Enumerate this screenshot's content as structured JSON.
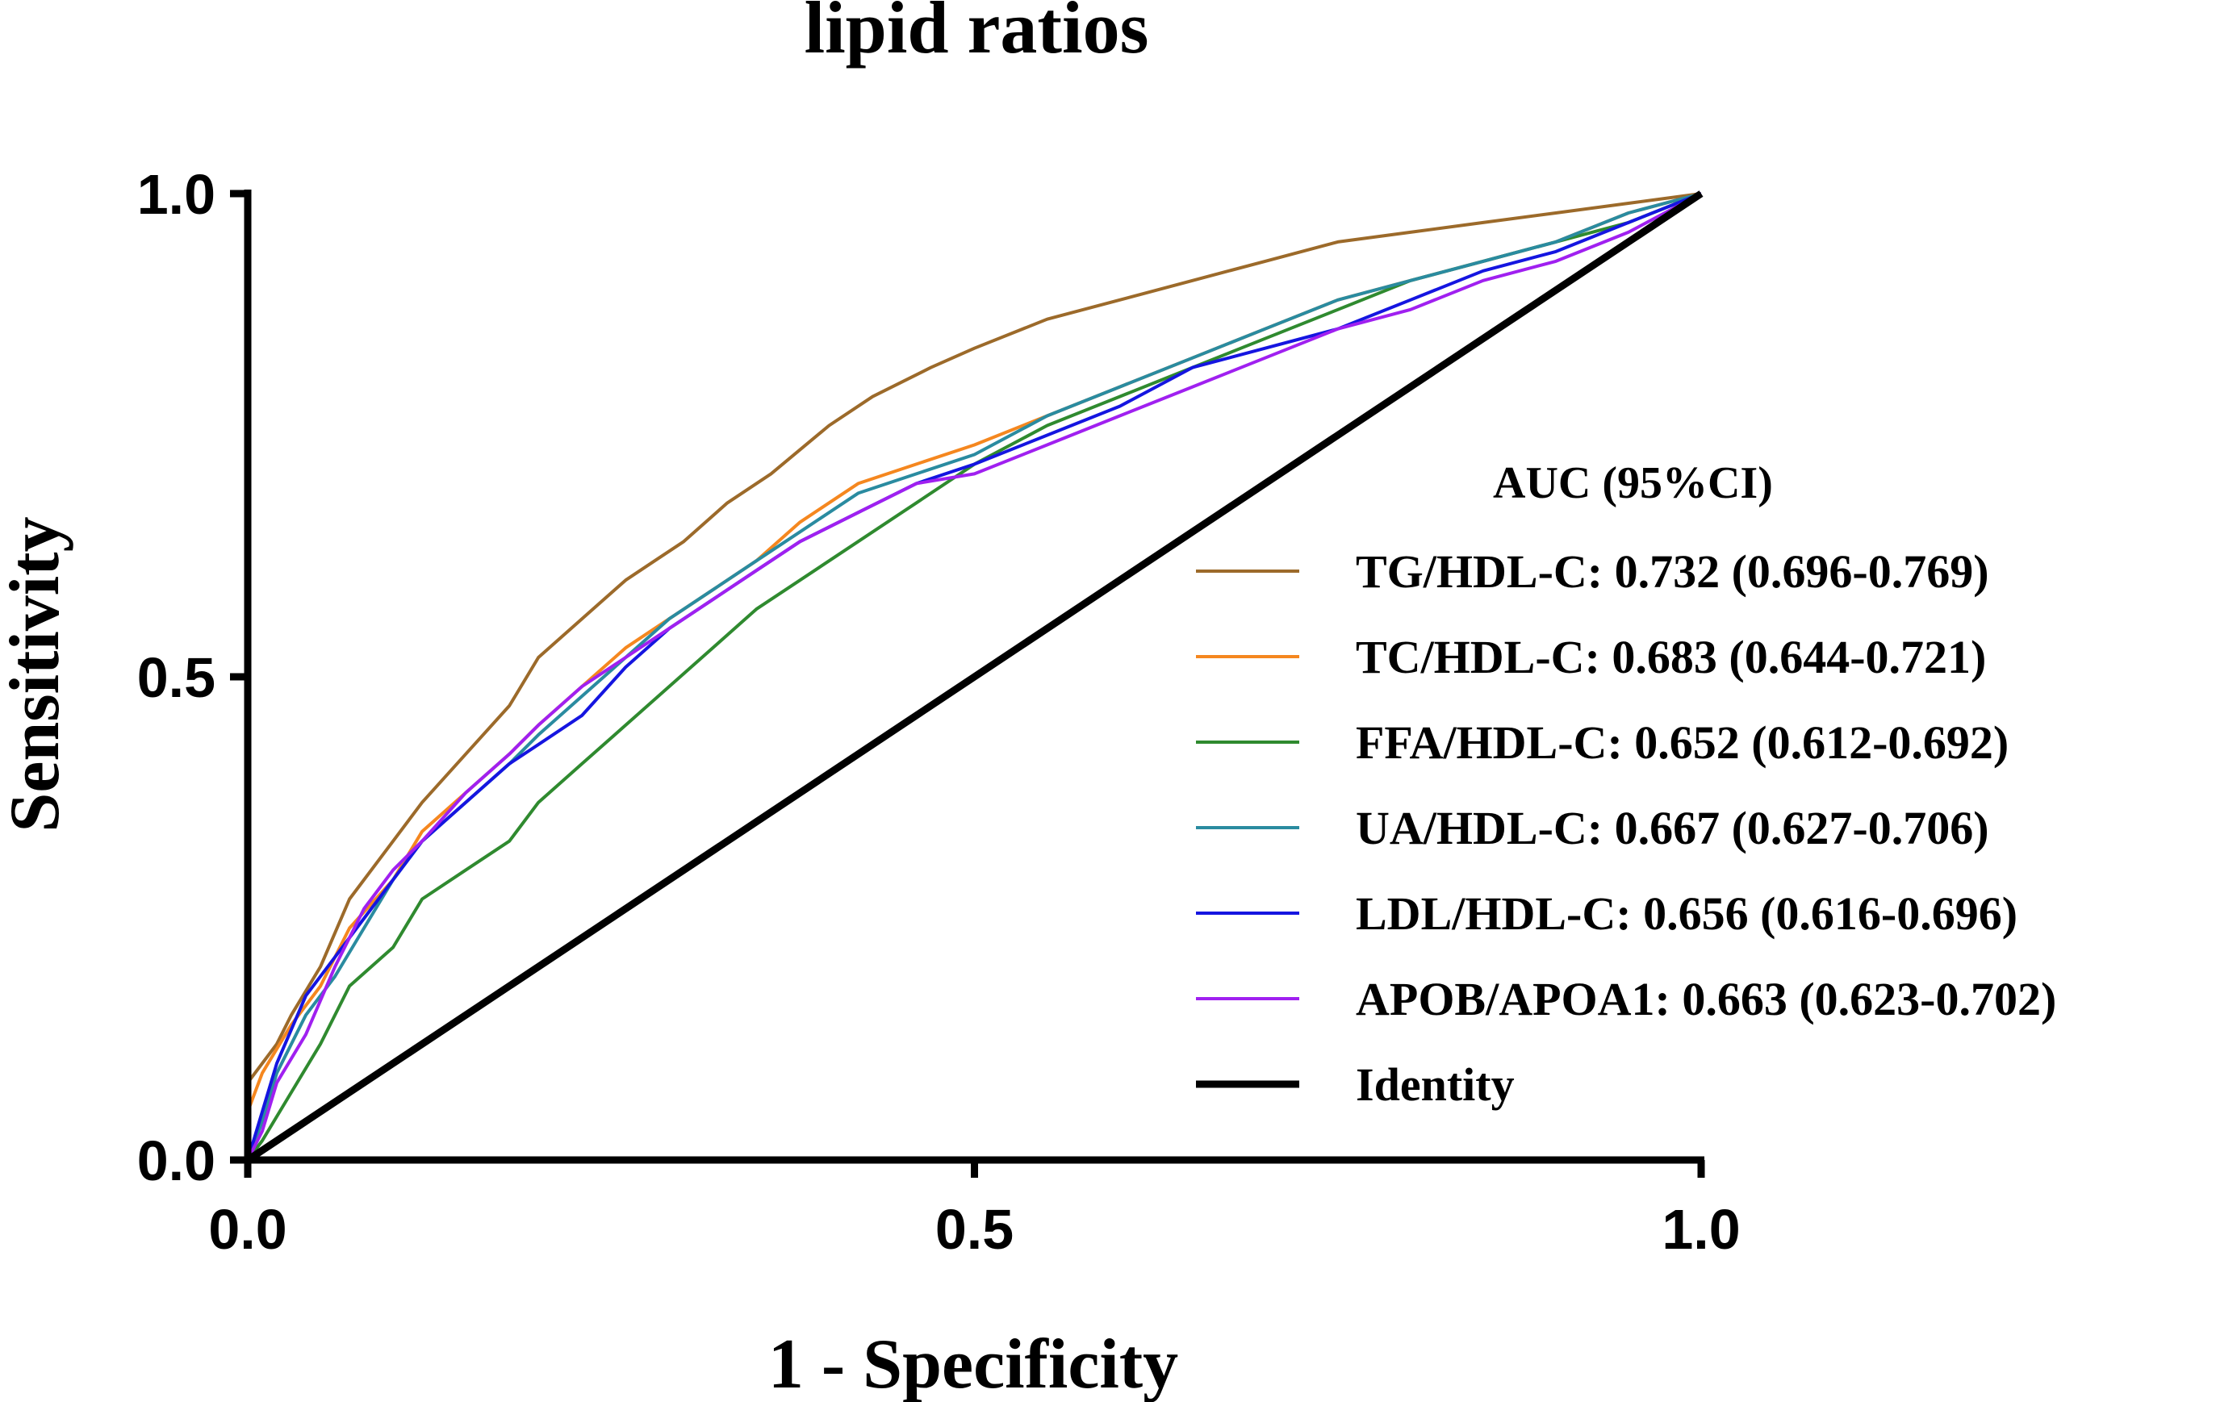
{
  "chart_data": {
    "type": "line",
    "title": "lipid ratios",
    "xlabel": "1 - Specificity",
    "ylabel": "Sensitivity",
    "xlim": [
      0,
      1
    ],
    "ylim": [
      0,
      1
    ],
    "x_ticks": [
      {
        "value": 0.0,
        "label": "0.0"
      },
      {
        "value": 0.5,
        "label": "0.5"
      },
      {
        "value": 1.0,
        "label": "1.0"
      }
    ],
    "y_ticks": [
      {
        "value": 0.0,
        "label": "0.0"
      },
      {
        "value": 0.5,
        "label": "0.5"
      },
      {
        "value": 1.0,
        "label": "1.0"
      }
    ],
    "grid": false,
    "legend_title": "AUC (95%CI)",
    "legend_position": "bottom-right",
    "series": [
      {
        "name": "TG/HDL-C",
        "label": "TG/HDL-C: 0.732 (0.696-0.769)",
        "auc": 0.732,
        "ci": [
          0.696,
          0.769
        ],
        "color": "#9c6a2a",
        "x": [
          0,
          0,
          0.01,
          0.02,
          0.03,
          0.05,
          0.07,
          0.1,
          0.12,
          0.15,
          0.18,
          0.2,
          0.23,
          0.26,
          0.28,
          0.3,
          0.33,
          0.36,
          0.4,
          0.43,
          0.47,
          0.5,
          0.55,
          0.6,
          0.65,
          0.7,
          0.75,
          0.8,
          0.85,
          0.9,
          0.95,
          1
        ],
        "y": [
          0,
          0.08,
          0.1,
          0.12,
          0.15,
          0.2,
          0.27,
          0.33,
          0.37,
          0.42,
          0.47,
          0.52,
          0.56,
          0.6,
          0.62,
          0.64,
          0.68,
          0.71,
          0.76,
          0.79,
          0.82,
          0.84,
          0.87,
          0.89,
          0.91,
          0.93,
          0.95,
          0.96,
          0.97,
          0.98,
          0.99,
          1
        ]
      },
      {
        "name": "TC/HDL-C",
        "label": "TC/HDL-C: 0.683 (0.644-0.721)",
        "auc": 0.683,
        "ci": [
          0.644,
          0.721
        ],
        "color": "#f5871f",
        "x": [
          0,
          0,
          0.01,
          0.03,
          0.05,
          0.07,
          0.1,
          0.12,
          0.15,
          0.18,
          0.2,
          0.23,
          0.26,
          0.29,
          0.32,
          0.35,
          0.38,
          0.42,
          0.46,
          0.5,
          0.55,
          0.6,
          0.65,
          0.7,
          0.75,
          0.8,
          0.85,
          0.9,
          0.95,
          1
        ],
        "y": [
          0,
          0.05,
          0.09,
          0.14,
          0.18,
          0.24,
          0.29,
          0.34,
          0.38,
          0.42,
          0.45,
          0.49,
          0.53,
          0.56,
          0.59,
          0.62,
          0.66,
          0.7,
          0.72,
          0.74,
          0.77,
          0.8,
          0.83,
          0.86,
          0.89,
          0.91,
          0.93,
          0.95,
          0.98,
          1
        ]
      },
      {
        "name": "FFA/HDL-C",
        "label": "FFA/HDL-C: 0.652 (0.612-0.692)",
        "auc": 0.652,
        "ci": [
          0.612,
          0.692
        ],
        "color": "#2f8a2f",
        "x": [
          0,
          0.01,
          0.03,
          0.05,
          0.07,
          0.1,
          0.12,
          0.15,
          0.18,
          0.2,
          0.23,
          0.26,
          0.29,
          0.32,
          0.35,
          0.38,
          0.42,
          0.46,
          0.5,
          0.55,
          0.6,
          0.65,
          0.7,
          0.75,
          0.8,
          0.85,
          0.9,
          0.95,
          1
        ],
        "y": [
          0,
          0.02,
          0.07,
          0.12,
          0.18,
          0.22,
          0.27,
          0.3,
          0.33,
          0.37,
          0.41,
          0.45,
          0.49,
          0.53,
          0.57,
          0.6,
          0.64,
          0.68,
          0.72,
          0.76,
          0.79,
          0.82,
          0.85,
          0.88,
          0.91,
          0.93,
          0.95,
          0.97,
          1
        ]
      },
      {
        "name": "UA/HDL-C",
        "label": "UA/HDL-C: 0.667 (0.627-0.706)",
        "auc": 0.667,
        "ci": [
          0.627,
          0.706
        ],
        "color": "#2a8ba0",
        "x": [
          0,
          0.01,
          0.02,
          0.04,
          0.06,
          0.08,
          0.1,
          0.12,
          0.15,
          0.18,
          0.2,
          0.23,
          0.26,
          0.29,
          0.32,
          0.35,
          0.38,
          0.42,
          0.46,
          0.5,
          0.55,
          0.6,
          0.65,
          0.7,
          0.75,
          0.8,
          0.85,
          0.9,
          0.95,
          1
        ],
        "y": [
          0,
          0.04,
          0.09,
          0.15,
          0.19,
          0.24,
          0.29,
          0.33,
          0.37,
          0.41,
          0.44,
          0.48,
          0.52,
          0.56,
          0.59,
          0.62,
          0.65,
          0.69,
          0.71,
          0.73,
          0.77,
          0.8,
          0.83,
          0.86,
          0.89,
          0.91,
          0.93,
          0.95,
          0.98,
          1
        ]
      },
      {
        "name": "LDL/HDL-C",
        "label": "LDL/HDL-C: 0.656 (0.616-0.696)",
        "auc": 0.656,
        "ci": [
          0.616,
          0.696
        ],
        "color": "#1515e0",
        "x": [
          0,
          0.01,
          0.02,
          0.04,
          0.06,
          0.08,
          0.1,
          0.12,
          0.15,
          0.18,
          0.2,
          0.23,
          0.26,
          0.29,
          0.32,
          0.35,
          0.38,
          0.42,
          0.46,
          0.5,
          0.55,
          0.6,
          0.65,
          0.7,
          0.75,
          0.8,
          0.85,
          0.9,
          0.95,
          1
        ],
        "y": [
          0,
          0.05,
          0.1,
          0.17,
          0.21,
          0.25,
          0.29,
          0.33,
          0.37,
          0.41,
          0.43,
          0.46,
          0.51,
          0.55,
          0.58,
          0.61,
          0.64,
          0.67,
          0.7,
          0.72,
          0.75,
          0.78,
          0.82,
          0.84,
          0.86,
          0.89,
          0.92,
          0.94,
          0.97,
          1
        ]
      },
      {
        "name": "APOB/APOA1",
        "label": "APOB/APOA1: 0.663 (0.623-0.702)",
        "auc": 0.663,
        "ci": [
          0.623,
          0.702
        ],
        "color": "#a020f0",
        "x": [
          0,
          0.01,
          0.02,
          0.04,
          0.06,
          0.08,
          0.1,
          0.12,
          0.15,
          0.18,
          0.2,
          0.23,
          0.26,
          0.29,
          0.32,
          0.35,
          0.38,
          0.42,
          0.46,
          0.5,
          0.55,
          0.6,
          0.65,
          0.7,
          0.75,
          0.8,
          0.85,
          0.9,
          0.95,
          1
        ],
        "y": [
          0,
          0.03,
          0.08,
          0.13,
          0.2,
          0.26,
          0.3,
          0.33,
          0.38,
          0.42,
          0.45,
          0.49,
          0.52,
          0.55,
          0.58,
          0.61,
          0.64,
          0.67,
          0.7,
          0.71,
          0.74,
          0.77,
          0.8,
          0.83,
          0.86,
          0.88,
          0.91,
          0.93,
          0.96,
          1
        ]
      },
      {
        "name": "Identity",
        "label": "Identity",
        "color": "#000000",
        "x": [
          0,
          1
        ],
        "y": [
          0,
          1
        ]
      }
    ]
  }
}
